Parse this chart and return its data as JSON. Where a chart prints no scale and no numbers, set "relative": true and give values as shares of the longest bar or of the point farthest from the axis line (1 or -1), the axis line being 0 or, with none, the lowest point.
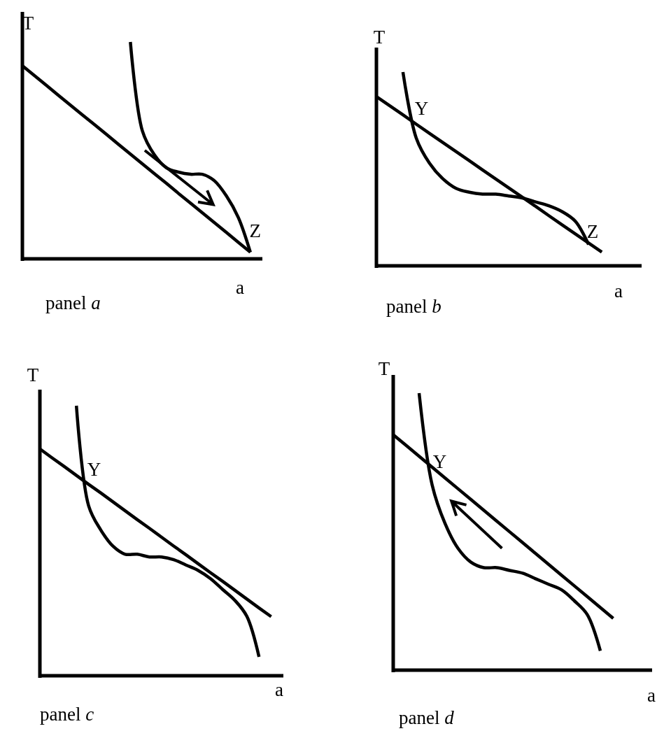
{
  "chart_data": [
    {
      "type": "line",
      "title": "panel a",
      "xlabel": "a",
      "ylabel": "T",
      "relative": true,
      "marker": "none",
      "line_style": "solid",
      "annotations": [
        "Z"
      ],
      "categories": [
        null,
        null,
        null,
        null,
        null,
        null,
        null,
        null,
        null,
        null,
        null,
        null,
        null,
        null,
        null,
        null,
        null,
        null,
        null,
        null,
        null
      ],
      "series": [
        {
          "color": "#000000",
          "values": [
            0.89,
            0.845,
            0.8,
            0.754,
            0.709,
            0.664,
            0.619,
            0.574,
            0.528,
            0.483,
            0.438,
            0.393,
            0.348,
            0.302,
            0.257,
            0.212,
            0.167,
            0.122,
            0.076,
            0.031,
            null
          ]
        },
        {
          "color": "#000000",
          "values": [
            null,
            null,
            null,
            null,
            null,
            null,
            null,
            null,
            null,
            1.0,
            0.59,
            0.48,
            0.42,
            0.4,
            0.39,
            0.39,
            0.36,
            0.29,
            0.19,
            0.03,
            null
          ]
        }
      ]
    },
    {
      "type": "line",
      "title": "panel b",
      "xlabel": "a",
      "ylabel": "T",
      "relative": true,
      "marker": "none",
      "line_style": "solid",
      "annotations": [
        "Y",
        "Z"
      ],
      "categories": [
        null,
        null,
        null,
        null,
        null,
        null,
        null,
        null,
        null,
        null,
        null,
        null,
        null,
        null,
        null,
        null,
        null,
        null,
        null,
        null,
        null
      ],
      "series": [
        {
          "color": "#000000",
          "values": [
            0.873,
            0.826,
            0.779,
            0.731,
            0.684,
            0.637,
            0.59,
            0.543,
            0.495,
            0.448,
            0.401,
            0.354,
            0.307,
            0.259,
            0.212,
            0.165,
            0.118,
            0.071,
            null,
            null,
            null
          ]
        },
        {
          "color": "#000000",
          "values": [
            null,
            null,
            1.0,
            0.66,
            0.53,
            0.45,
            0.4,
            0.38,
            0.37,
            0.37,
            0.36,
            0.35,
            0.33,
            0.31,
            0.28,
            0.23,
            0.11,
            null,
            null,
            null,
            null
          ]
        }
      ]
    },
    {
      "type": "line",
      "title": "panel c",
      "xlabel": "a",
      "ylabel": "T",
      "relative": true,
      "marker": "none",
      "line_style": "solid",
      "annotations": [
        "Y"
      ],
      "categories": [
        null,
        null,
        null,
        null,
        null,
        null,
        null,
        null,
        null,
        null,
        null,
        null,
        null,
        null,
        null,
        null,
        null,
        null,
        null,
        null,
        null
      ],
      "series": [
        {
          "color": "#000000",
          "values": [
            0.84,
            0.807,
            0.775,
            0.742,
            0.709,
            0.677,
            0.644,
            0.611,
            0.578,
            0.546,
            0.513,
            0.48,
            0.448,
            0.415,
            0.382,
            0.35,
            0.317,
            0.284,
            0.251,
            0.219,
            null
          ]
        },
        {
          "color": "#000000",
          "values": [
            null,
            null,
            null,
            1.0,
            0.63,
            0.54,
            0.48,
            0.45,
            0.45,
            0.44,
            0.44,
            0.43,
            0.41,
            0.39,
            0.36,
            0.32,
            0.28,
            0.22,
            0.07,
            null,
            null
          ]
        }
      ]
    },
    {
      "type": "line",
      "title": "panel d",
      "xlabel": "a",
      "ylabel": "T",
      "relative": true,
      "marker": "none",
      "line_style": "solid",
      "annotations": [
        "Y"
      ],
      "categories": [
        null,
        null,
        null,
        null,
        null,
        null,
        null,
        null,
        null,
        null,
        null,
        null,
        null,
        null,
        null,
        null,
        null,
        null,
        null,
        null,
        null
      ],
      "series": [
        {
          "color": "#000000",
          "values": [
            0.85,
            0.811,
            0.772,
            0.733,
            0.694,
            0.655,
            0.616,
            0.577,
            0.538,
            0.499,
            0.46,
            0.421,
            0.382,
            0.343,
            0.304,
            0.265,
            0.226,
            0.187,
            null,
            null,
            null
          ]
        },
        {
          "color": "#000000",
          "values": [
            null,
            null,
            1.0,
            0.67,
            0.53,
            0.44,
            0.39,
            0.37,
            0.37,
            0.36,
            0.35,
            0.33,
            0.31,
            0.29,
            0.25,
            0.2,
            0.07,
            null,
            null,
            null,
            null
          ]
        }
      ]
    }
  ]
}
